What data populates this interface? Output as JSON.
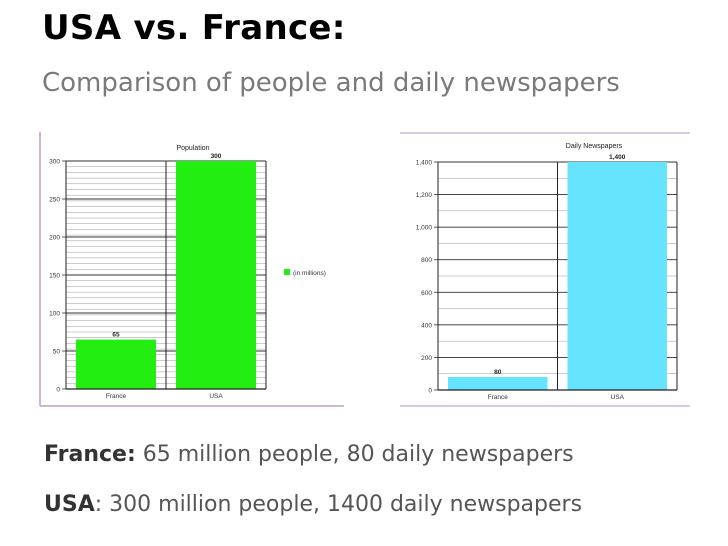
{
  "slide": {
    "title": "USA vs. France:",
    "subtitle": "Comparison of people and daily newspapers"
  },
  "chart_data": [
    {
      "type": "bar",
      "title": "Population",
      "categories": [
        "France",
        "USA"
      ],
      "values": [
        65,
        300
      ],
      "value_labels": [
        "65",
        "300"
      ],
      "ylim": [
        0,
        300
      ],
      "yticks": [
        "0",
        "50",
        "100",
        "150",
        "200",
        "250",
        "300"
      ],
      "legend": "(in millions)",
      "legend_position": "right",
      "grid": true,
      "color": "#22ee11"
    },
    {
      "type": "bar",
      "title": "Daily Newspapers",
      "categories": [
        "France",
        "USA"
      ],
      "values": [
        80,
        1400
      ],
      "value_labels": [
        "80",
        "1,400"
      ],
      "ylim": [
        0,
        1400
      ],
      "yticks": [
        "0",
        "200",
        "400",
        "600",
        "800",
        "1,000",
        "1,200",
        "1,400"
      ],
      "grid": true,
      "color": "#66e3ff"
    }
  ],
  "footer": {
    "france_label": "France:",
    "france_text": " 65 million people, 80 daily newspapers",
    "usa_label": "USA",
    "usa_text": ": 300 million people, 1400 daily newspapers"
  }
}
